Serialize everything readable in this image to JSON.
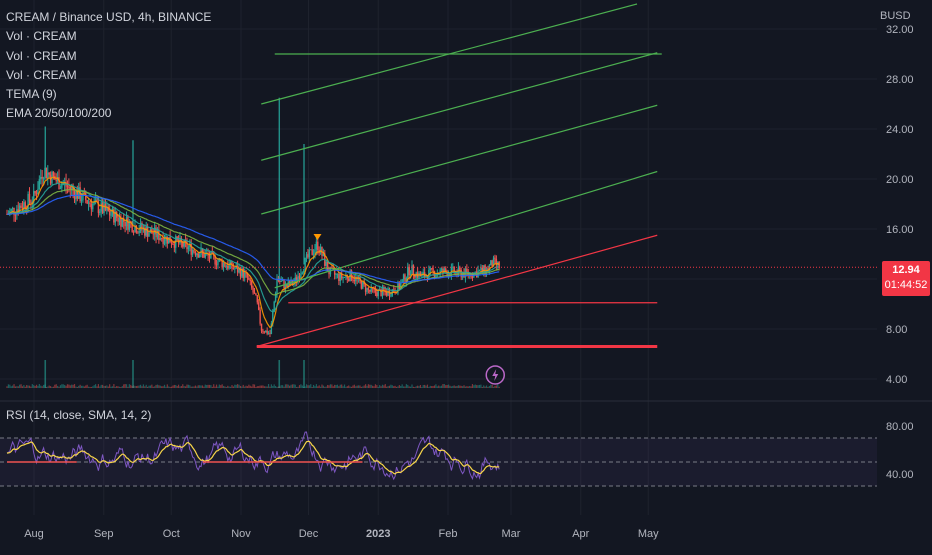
{
  "header": {
    "title": "CREAM / Binance USD, 4h, BINANCE",
    "indicators": [
      "Vol · CREAM",
      "Vol · CREAM",
      "Vol · CREAM",
      "TEMA (9)",
      "EMA 20/50/100/200"
    ]
  },
  "currency": "BUSD",
  "last_price": "12.94",
  "countdown": "01:44:52",
  "rsi_label": "RSI (14, close, SMA, 14, 2)",
  "colors": {
    "background": "#131722",
    "up": "#26a69a",
    "down": "#ef5350",
    "channel_green": "#4caf50",
    "support_red": "#f23645",
    "rsi_line": "#7e57c2",
    "rsi_ma": "#f7d54a"
  },
  "chart_data": [
    {
      "type": "candlestick",
      "title": "CREAM / Binance USD, 4h, BINANCE",
      "ylabel": "BUSD",
      "y_ticks": [
        "32.00",
        "28.00",
        "24.00",
        "20.00",
        "16.00",
        "12.00",
        "8.00",
        "4.00"
      ],
      "x_ticks": [
        "Aug",
        "Sep",
        "Oct",
        "Nov",
        "Dec",
        "2023",
        "Feb",
        "Mar",
        "Apr",
        "May"
      ],
      "close_path": {
        "dates": [
          "2022-07-20",
          "2022-08-01",
          "2022-08-05",
          "2022-08-10",
          "2022-08-15",
          "2022-08-25",
          "2022-09-05",
          "2022-09-15",
          "2022-10-01",
          "2022-10-15",
          "2022-11-01",
          "2022-11-04",
          "2022-11-08",
          "2022-11-10",
          "2022-11-14",
          "2022-11-17",
          "2022-11-21",
          "2022-11-25",
          "2022-11-30",
          "2022-12-05",
          "2022-12-10",
          "2022-12-15",
          "2022-12-20",
          "2022-12-28",
          "2023-01-05",
          "2023-01-10",
          "2023-01-15",
          "2023-01-20",
          "2023-01-25",
          "2023-02-01",
          "2023-02-10",
          "2023-02-18",
          "2023-02-21",
          "2023-02-24"
        ],
        "close": [
          17.2,
          18.5,
          20.8,
          20.0,
          19.5,
          18.2,
          17.1,
          16.2,
          15.1,
          14.0,
          12.6,
          12.0,
          10.2,
          8.0,
          7.6,
          12.0,
          11.4,
          11.8,
          13.5,
          14.8,
          12.6,
          12.1,
          12.3,
          11.0,
          10.9,
          11.3,
          12.8,
          12.2,
          12.5,
          12.6,
          12.4,
          12.7,
          13.3,
          12.94
        ]
      },
      "spikes": [
        {
          "date": "2022-11-18",
          "high": 26.5
        },
        {
          "date": "2022-11-29",
          "high": 22.8
        },
        {
          "date": "2022-08-06",
          "high": 24.2
        },
        {
          "date": "2022-09-14",
          "high": 23.1
        }
      ],
      "last_price": 12.94,
      "lines": [
        {
          "name": "",
          "kind": "horizontal",
          "color": "#4caf50",
          "from": "2022-11-16",
          "to": "2023-05-07",
          "y": 30.0
        },
        {
          "name": "",
          "kind": "trend",
          "color": "#4caf50",
          "from": "2022-11-10",
          "to": "2023-04-26",
          "y1": 26.0,
          "y2": 34.0
        },
        {
          "name": "",
          "kind": "trend",
          "color": "#4caf50",
          "from": "2022-11-10",
          "to": "2023-05-05",
          "y1": 21.5,
          "y2": 30.1
        },
        {
          "name": "",
          "kind": "trend",
          "color": "#4caf50",
          "from": "2022-11-10",
          "to": "2023-05-05",
          "y1": 17.2,
          "y2": 25.9
        },
        {
          "name": "",
          "kind": "trend",
          "color": "#4caf50",
          "from": "2022-11-16",
          "to": "2023-05-05",
          "y1": 11.3,
          "y2": 20.6
        },
        {
          "name": "",
          "kind": "trend",
          "color": "#f23645",
          "from": "2022-11-08",
          "to": "2023-05-05",
          "y1": 6.6,
          "y2": 15.5
        },
        {
          "name": "",
          "kind": "horizontal",
          "color": "#f23645",
          "from": "2022-11-22",
          "to": "2023-05-05",
          "y": 10.1
        },
        {
          "name": "",
          "kind": "horizontal",
          "color": "#f23645",
          "from": "2022-11-08",
          "to": "2023-05-05",
          "y": 6.6
        }
      ]
    },
    {
      "type": "line",
      "title": "RSI (14, close, SMA, 14, 2)",
      "y_ticks": [
        "80.00",
        "40.00"
      ],
      "levels": [
        70,
        50,
        30
      ],
      "ylim": [
        20,
        90
      ],
      "note": "oscillating RSI roughly between 25 and 85, flat red segment near 50 in Dec"
    }
  ]
}
